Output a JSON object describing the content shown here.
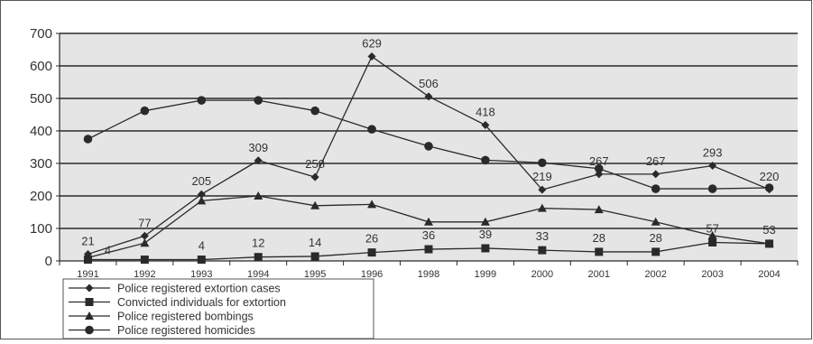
{
  "chart_data": {
    "type": "line",
    "categories": [
      "1991",
      "1992",
      "1993",
      "1994",
      "1995",
      "1996",
      "1998",
      "1999",
      "2000",
      "2001",
      "2002",
      "2003",
      "2004"
    ],
    "ylim": [
      0,
      700
    ],
    "yticks": [
      0,
      100,
      200,
      300,
      400,
      500,
      600,
      700
    ],
    "grid": true,
    "legend_position": "bottom-left",
    "series": [
      {
        "name": "Police registered extortion cases",
        "marker": "diamond",
        "values": [
          21,
          77,
          205,
          309,
          258,
          629,
          506,
          418,
          219,
          267,
          267,
          293,
          220
        ],
        "labels": [
          "21",
          "77",
          "205",
          "309",
          "258",
          "629",
          "506",
          "418",
          "219",
          "267",
          "267",
          "293",
          "220"
        ]
      },
      {
        "name": "Convicted individuals for extortion",
        "marker": "square",
        "values": [
          4,
          4,
          4,
          12,
          14,
          26,
          36,
          39,
          33,
          28,
          28,
          57,
          53
        ],
        "labels": [
          "4",
          "",
          "4",
          "12",
          "14",
          "26",
          "36",
          "39",
          "33",
          "28",
          "28",
          "57",
          "53"
        ]
      },
      {
        "name": "Police registered bombings",
        "marker": "triangle",
        "values": [
          10,
          55,
          185,
          200,
          170,
          174,
          120,
          120,
          162,
          158,
          120,
          78,
          53
        ],
        "labels": []
      },
      {
        "name": "Police registered homicides",
        "marker": "circle",
        "values": [
          375,
          462,
          494,
          494,
          462,
          405,
          353,
          310,
          302,
          284,
          222,
          222,
          225
        ],
        "labels": []
      }
    ]
  },
  "colors": {
    "plot_background": "#e5e5e5",
    "line": "#2a2a2a",
    "grid": "#2a2a2a",
    "text": "#333333"
  }
}
